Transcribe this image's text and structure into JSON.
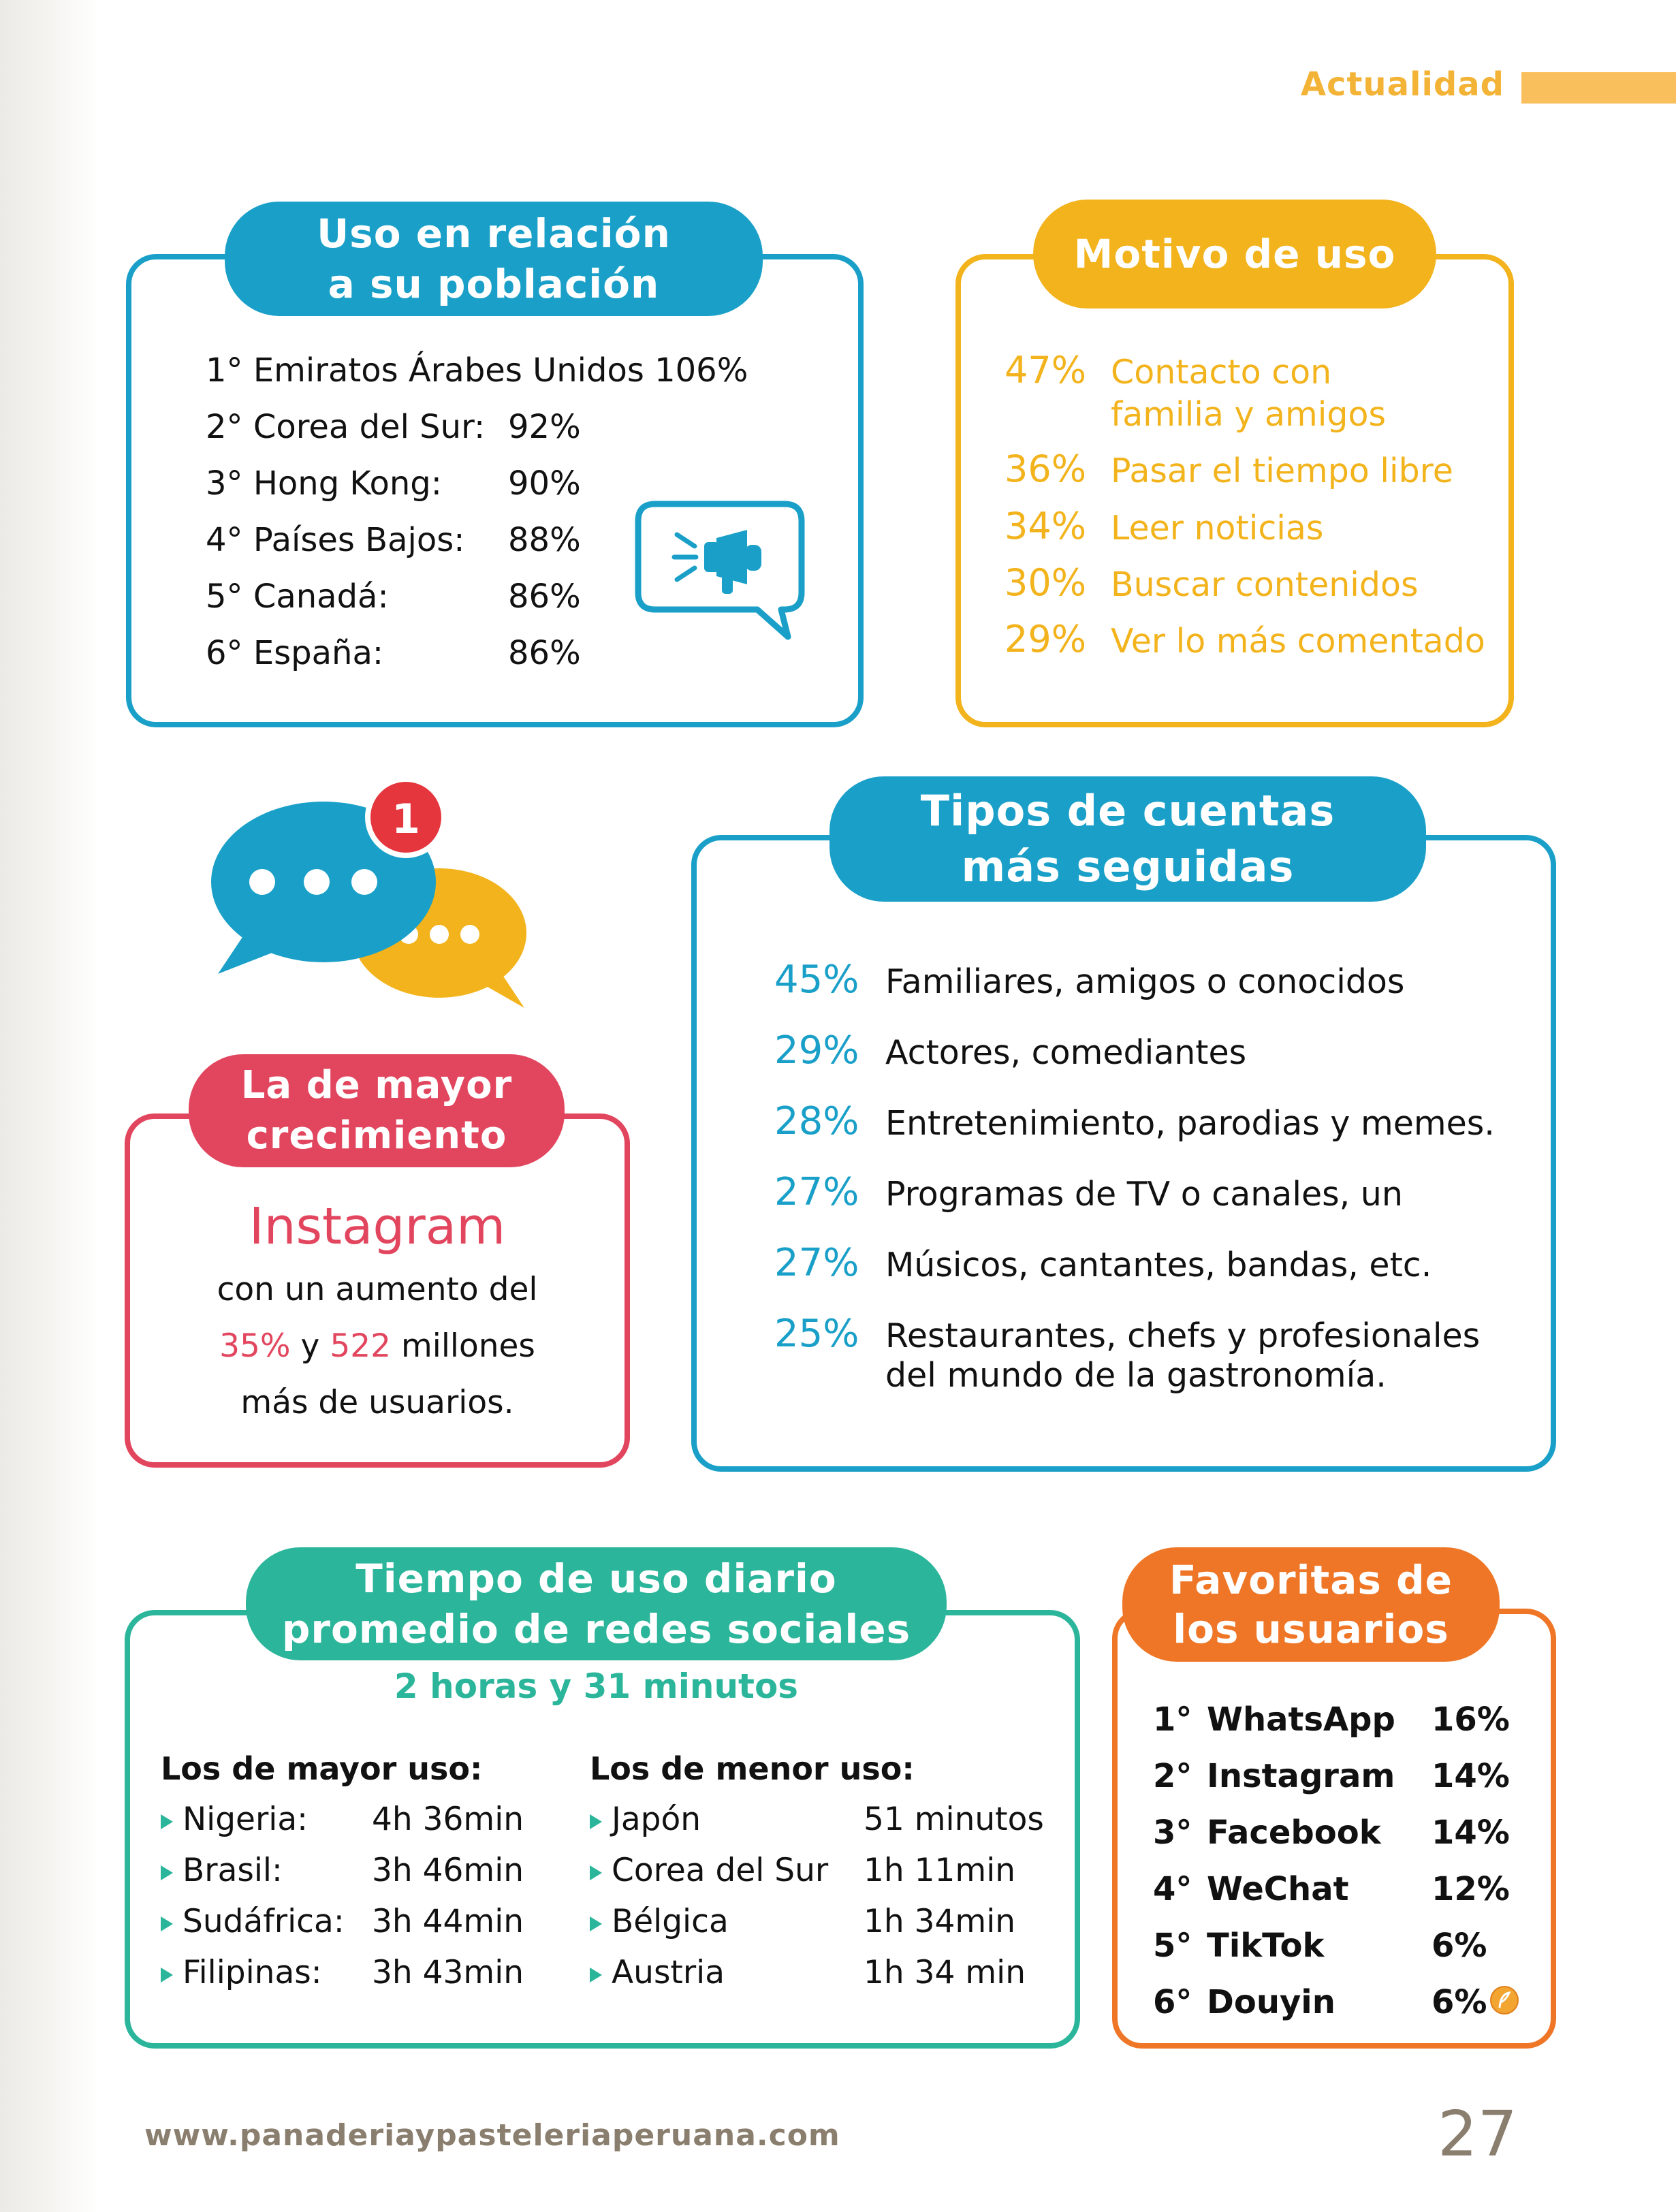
{
  "header": {
    "section": "Actualidad"
  },
  "population": {
    "title_line1": "Uso en relación",
    "title_line2": "a su población",
    "items": [
      {
        "rank": "1°",
        "country": "Emiratos Árabes Unidos",
        "value": "106%"
      },
      {
        "rank": "2°",
        "country": "Corea del Sur:",
        "value": "92%"
      },
      {
        "rank": "3°",
        "country": "Hong Kong:",
        "value": "90%"
      },
      {
        "rank": "4°",
        "country": "Países Bajos:",
        "value": "88%"
      },
      {
        "rank": "5°",
        "country": "Canadá:",
        "value": "86%"
      },
      {
        "rank": "6°",
        "country": "España:",
        "value": "86%"
      }
    ]
  },
  "motive": {
    "title": "Motivo de uso",
    "items": [
      {
        "pct": "47%",
        "line1": "Contacto con",
        "line2": "familia y amigos"
      },
      {
        "pct": "36%",
        "line1": "Pasar el tiempo libre"
      },
      {
        "pct": "34%",
        "line1": "Leer noticias"
      },
      {
        "pct": "30%",
        "line1": "Buscar contenidos"
      },
      {
        "pct": "29%",
        "line1": "Ver lo más comentado"
      }
    ]
  },
  "notification": {
    "badge": "1"
  },
  "growth": {
    "title_line1": "La de mayor",
    "title_line2": "crecimiento",
    "platform": "Instagram",
    "line1": "con un aumento del",
    "pct": "35%",
    "conj": "y",
    "millions": "522",
    "millions_label": "millones",
    "line3": "más de usuarios."
  },
  "accounts": {
    "title_line1": "Tipos de cuentas",
    "title_line2": "más seguidas",
    "items": [
      {
        "pct": "45%",
        "line1": "Familiares, amigos o conocidos"
      },
      {
        "pct": "29%",
        "line1": "Actores, comediantes"
      },
      {
        "pct": "28%",
        "line1": "Entretenimiento, parodias y memes."
      },
      {
        "pct": "27%",
        "line1": "Programas de TV o canales, un"
      },
      {
        "pct": "27%",
        "line1": "Músicos, cantantes, bandas, etc."
      },
      {
        "pct": "25%",
        "line1": "Restaurantes, chefs y profesionales",
        "line2": "del mundo de la gastronomía."
      }
    ]
  },
  "daily_time": {
    "title_line1": "Tiempo de uso diario",
    "title_line2": "promedio de redes sociales",
    "average": "2 horas y 31 minutos",
    "most_heading": "Los de mayor uso:",
    "least_heading": "Los de menor uso:",
    "most": [
      {
        "country": "Nigeria:",
        "time": "4h 36min"
      },
      {
        "country": "Brasil:",
        "time": "3h 46min"
      },
      {
        "country": "Sudáfrica:",
        "time": "3h 44min"
      },
      {
        "country": "Filipinas:",
        "time": "3h 43min"
      }
    ],
    "least": [
      {
        "country": "Japón",
        "time": "51 minutos"
      },
      {
        "country": "Corea del Sur",
        "time": "1h 11min"
      },
      {
        "country": "Bélgica",
        "time": "1h 34min"
      },
      {
        "country": "Austria",
        "time": "1h 34 min"
      }
    ]
  },
  "favorites": {
    "title_line1": "Favoritas de",
    "title_line2": "los usuarios",
    "items": [
      {
        "rank": "1°",
        "name": "WhatsApp",
        "pct": "16%"
      },
      {
        "rank": "2°",
        "name": "Instagram",
        "pct": "14%"
      },
      {
        "rank": "3°",
        "name": "Facebook",
        "pct": "14%"
      },
      {
        "rank": "4°",
        "name": "WeChat",
        "pct": "12%"
      },
      {
        "rank": "5°",
        "name": "TikTok",
        "pct": "6%"
      },
      {
        "rank": "6°",
        "name": "Douyin",
        "pct": "6%"
      }
    ]
  },
  "footer": {
    "url": "www.panaderiaypasteleriaperuana.com",
    "page": "27"
  }
}
